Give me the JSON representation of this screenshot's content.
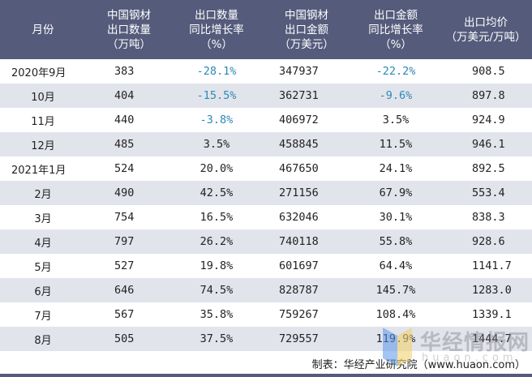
{
  "table": {
    "headers": [
      [
        "月份"
      ],
      [
        "中国钢材",
        "出口数量",
        "（万吨）"
      ],
      [
        "出口数量",
        "同比增长率",
        "（%）"
      ],
      [
        "中国钢材",
        "出口金额",
        "（万美元）"
      ],
      [
        "出口金额",
        "同比增长率",
        "（%）"
      ],
      [
        "出口均价",
        "（万美元/万吨）"
      ]
    ],
    "rows": [
      {
        "month": "2020年9月",
        "qty": "383",
        "qty_yoy": "-28.1%",
        "value": "347937",
        "value_yoy": "-22.2%",
        "price": "908.5",
        "qty_neg": true,
        "value_neg": true
      },
      {
        "month": "10月",
        "qty": "404",
        "qty_yoy": "-15.5%",
        "value": "362731",
        "value_yoy": "-9.6%",
        "price": "897.8",
        "qty_neg": true,
        "value_neg": true
      },
      {
        "month": "11月",
        "qty": "440",
        "qty_yoy": "-3.8%",
        "value": "406972",
        "value_yoy": "3.5%",
        "price": "924.9",
        "qty_neg": true,
        "value_neg": false
      },
      {
        "month": "12月",
        "qty": "485",
        "qty_yoy": "3.5%",
        "value": "458845",
        "value_yoy": "11.5%",
        "price": "946.1",
        "qty_neg": false,
        "value_neg": false
      },
      {
        "month": "2021年1月",
        "qty": "524",
        "qty_yoy": "20.0%",
        "value": "467650",
        "value_yoy": "24.1%",
        "price": "892.5",
        "qty_neg": false,
        "value_neg": false
      },
      {
        "month": "2月",
        "qty": "490",
        "qty_yoy": "42.5%",
        "value": "271156",
        "value_yoy": "67.9%",
        "price": "553.4",
        "qty_neg": false,
        "value_neg": false
      },
      {
        "month": "3月",
        "qty": "754",
        "qty_yoy": "16.5%",
        "value": "632046",
        "value_yoy": "30.1%",
        "price": "838.3",
        "qty_neg": false,
        "value_neg": false
      },
      {
        "month": "4月",
        "qty": "797",
        "qty_yoy": "26.2%",
        "value": "740118",
        "value_yoy": "55.8%",
        "price": "928.6",
        "qty_neg": false,
        "value_neg": false
      },
      {
        "month": "5月",
        "qty": "527",
        "qty_yoy": "19.8%",
        "value": "601697",
        "value_yoy": "64.4%",
        "price": "1141.7",
        "qty_neg": false,
        "value_neg": false
      },
      {
        "month": "6月",
        "qty": "646",
        "qty_yoy": "74.5%",
        "value": "828787",
        "value_yoy": "145.7%",
        "price": "1283.0",
        "qty_neg": false,
        "value_neg": false
      },
      {
        "month": "7月",
        "qty": "567",
        "qty_yoy": "35.8%",
        "value": "759267",
        "value_yoy": "108.4%",
        "price": "1339.1",
        "qty_neg": false,
        "value_neg": false
      },
      {
        "month": "8月",
        "qty": "505",
        "qty_yoy": "37.5%",
        "value": "729557",
        "value_yoy": "119.9%",
        "price": "1444.7",
        "qty_neg": false,
        "value_neg": false
      }
    ]
  },
  "footer": {
    "source": "制表：华经产业研究院（www.huaon.com）"
  },
  "watermark": {
    "brand": "华经情报网",
    "url": "huaon.com"
  },
  "colors": {
    "header_bg": "#545b7b",
    "header_text": "#ffffff",
    "alt_row_bg": "#e2e4ec",
    "negative_text": "#2b8ab5",
    "body_text": "#222222"
  }
}
